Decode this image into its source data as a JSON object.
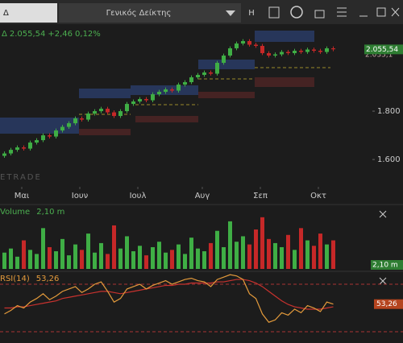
{
  "toolbar": {
    "symbol": "Δ",
    "title": "Γενικός Δείκτης",
    "interval": "H"
  },
  "chart_data": [
    {
      "type": "candlestick",
      "info": {
        "symbol": "Δ",
        "price": "2.055,54",
        "change": "+2,46",
        "change_pct": "0,12%"
      },
      "watermark": "ETRADE",
      "up_color": "#3fae45",
      "down_color": "#c62828",
      "open": [
        1615,
        1625,
        1640,
        1650,
        1645,
        1670,
        1680,
        1700,
        1695,
        1720,
        1735,
        1750,
        1770,
        1765,
        1790,
        1800,
        1810,
        1795,
        1780,
        1800,
        1830,
        1840,
        1850,
        1845,
        1870,
        1880,
        1890,
        1885,
        1910,
        1920,
        1940,
        1950,
        1960,
        1955,
        2000,
        2030,
        2060,
        2080,
        2090,
        2075,
        2070,
        2040,
        2030,
        2035,
        2045,
        2040,
        2050,
        2045,
        2055,
        2050,
        2045,
        2060
      ],
      "high": [
        1633,
        1648,
        1658,
        1658,
        1678,
        1688,
        1708,
        1708,
        1728,
        1743,
        1758,
        1778,
        1778,
        1798,
        1808,
        1818,
        1818,
        1803,
        1808,
        1838,
        1848,
        1858,
        1858,
        1878,
        1888,
        1898,
        1898,
        1918,
        1928,
        1948,
        1958,
        1968,
        1968,
        2008,
        2038,
        2068,
        2088,
        2098,
        2098,
        2083,
        2078,
        2048,
        2043,
        2053,
        2053,
        2058,
        2058,
        2063,
        2063,
        2058,
        2068,
        2068
      ],
      "low": [
        1607,
        1617,
        1632,
        1637,
        1637,
        1662,
        1672,
        1687,
        1687,
        1712,
        1727,
        1742,
        1757,
        1757,
        1782,
        1792,
        1787,
        1772,
        1772,
        1792,
        1822,
        1832,
        1837,
        1837,
        1862,
        1872,
        1877,
        1877,
        1902,
        1912,
        1932,
        1942,
        1947,
        1947,
        1992,
        2022,
        2052,
        2072,
        2067,
        2062,
        2032,
        2022,
        2022,
        2027,
        2032,
        2032,
        2037,
        2037,
        2042,
        2037,
        2037,
        2048
      ],
      "close": [
        1625,
        1640,
        1650,
        1645,
        1670,
        1680,
        1700,
        1695,
        1720,
        1735,
        1750,
        1770,
        1765,
        1790,
        1800,
        1810,
        1795,
        1780,
        1800,
        1830,
        1840,
        1850,
        1845,
        1870,
        1880,
        1890,
        1885,
        1910,
        1920,
        1940,
        1950,
        1960,
        1955,
        2000,
        2030,
        2060,
        2080,
        2090,
        2075,
        2070,
        2040,
        2030,
        2035,
        2045,
        2040,
        2050,
        2045,
        2055,
        2050,
        2045,
        2060,
        2056
      ],
      "ylim": [
        1487,
        2160
      ],
      "yticks": [
        {
          "value": 1800,
          "label": "1.800"
        },
        {
          "value": 1600,
          "label": "1.600"
        }
      ],
      "xticks": [
        {
          "value": 3,
          "label": "Μαι"
        },
        {
          "value": 12,
          "label": "Ιουν"
        },
        {
          "value": 21,
          "label": "Ιουλ"
        },
        {
          "value": 31,
          "label": "Αυγ"
        },
        {
          "value": 40,
          "label": "Σεπ"
        },
        {
          "value": 49,
          "label": "Οκτ"
        }
      ],
      "last_price": {
        "value": 2055.54,
        "label": "2.055,54"
      },
      "second_price": {
        "value": 2033.1,
        "label": "2.033,1"
      }
    },
    {
      "type": "bar",
      "name": "Volume",
      "current": "2,10 m",
      "tag": "2,10 m",
      "values": [
        1.2,
        1.5,
        0.9,
        2.1,
        1.4,
        1.1,
        3.0,
        1.6,
        1.3,
        2.2,
        1.0,
        1.8,
        1.4,
        2.6,
        1.2,
        1.9,
        1.1,
        3.2,
        1.5,
        2.4,
        1.3,
        1.7,
        1.0,
        1.6,
        2.0,
        1.2,
        1.4,
        1.8,
        1.1,
        2.3,
        1.5,
        1.3,
        1.9,
        2.8,
        1.6,
        3.5,
        2.0,
        2.4,
        1.8,
        2.9,
        3.8,
        2.2,
        1.9,
        1.6,
        2.5,
        1.4,
        3.0,
        2.1,
        1.7,
        2.6,
        1.8,
        2.1
      ],
      "ylim": [
        0,
        4.5
      ]
    },
    {
      "type": "line",
      "name": "RSI(14)",
      "color": "#e39a3b",
      "signal_color": "#c8322e",
      "current": {
        "value": 53.26,
        "label": "53,26"
      },
      "values": [
        45,
        48,
        52,
        50,
        55,
        58,
        62,
        57,
        60,
        64,
        66,
        68,
        63,
        66,
        70,
        72,
        64,
        55,
        58,
        66,
        68,
        70,
        66,
        69,
        71,
        73,
        70,
        72,
        74,
        75,
        73,
        72,
        68,
        74,
        76,
        78,
        77,
        74,
        62,
        58,
        45,
        38,
        40,
        46,
        44,
        49,
        46,
        52,
        50,
        47,
        55,
        53.26
      ],
      "signal_values": [
        50,
        50,
        51,
        51,
        52,
        53,
        54,
        55,
        56,
        58,
        59,
        60,
        61,
        62,
        63,
        64,
        64,
        63,
        62,
        63,
        64,
        65,
        66,
        67,
        68,
        69,
        69,
        70,
        70,
        71,
        71,
        71,
        71,
        72,
        72,
        73,
        74,
        74,
        73,
        71,
        68,
        64,
        60,
        56,
        53,
        51,
        50,
        49,
        49,
        49,
        50,
        51
      ],
      "levels": [
        70,
        30
      ],
      "ylim": [
        28,
        78.8
      ]
    }
  ]
}
